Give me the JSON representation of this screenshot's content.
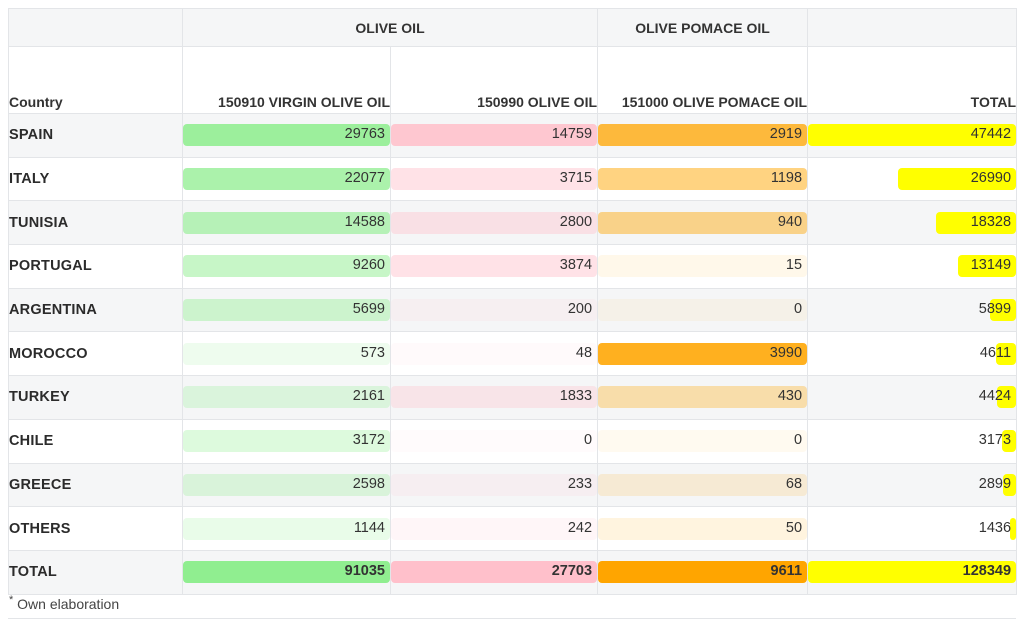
{
  "chart_data": {
    "type": "table",
    "group_headers": [
      "OLIVE OIL",
      "OLIVE POMACE OIL"
    ],
    "columns": [
      "Country",
      "150910 VIRGIN OLIVE OIL",
      "150990 OLIVE OIL",
      "151000 OLIVE POMACE OIL",
      "TOTAL"
    ],
    "rows": [
      {
        "country": "SPAIN",
        "values": [
          29763,
          14759,
          2919,
          47442
        ]
      },
      {
        "country": "ITALY",
        "values": [
          22077,
          3715,
          1198,
          26990
        ]
      },
      {
        "country": "TUNISIA",
        "values": [
          14588,
          2800,
          940,
          18328
        ]
      },
      {
        "country": "PORTUGAL",
        "values": [
          9260,
          3874,
          15,
          13149
        ]
      },
      {
        "country": "ARGENTINA",
        "values": [
          5699,
          200,
          0,
          5899
        ]
      },
      {
        "country": "MOROCCO",
        "values": [
          573,
          48,
          3990,
          4611
        ]
      },
      {
        "country": "TURKEY",
        "values": [
          2161,
          1833,
          430,
          4424
        ]
      },
      {
        "country": "CHILE",
        "values": [
          3172,
          0,
          0,
          3173
        ]
      },
      {
        "country": "GREECE",
        "values": [
          2598,
          233,
          68,
          2899
        ]
      },
      {
        "country": "OTHERS",
        "values": [
          1144,
          242,
          50,
          1436
        ]
      }
    ],
    "total_row": {
      "country": "TOTAL",
      "values": [
        91035,
        27703,
        9611,
        128349
      ]
    },
    "column_colors": [
      "#90ee90",
      "#ffc0cb",
      "#ffa500",
      "#ffff00"
    ],
    "footnote": "Own elaboration"
  }
}
